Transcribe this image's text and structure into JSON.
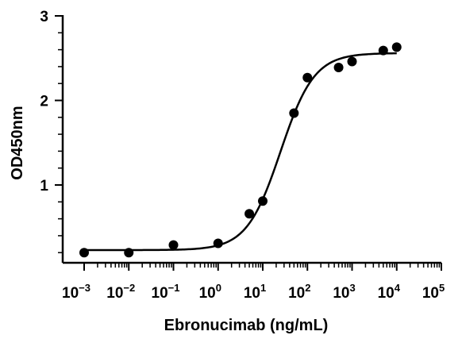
{
  "chart_data": {
    "type": "scatter",
    "xlabel": "Ebronucimab (ng/mL)",
    "ylabel": "OD450nm",
    "xscale": "log",
    "xlim": [
      0.001,
      100000
    ],
    "ylim": [
      0.15,
      3
    ],
    "x_ticks": [
      {
        "base": "10",
        "exp": "-3"
      },
      {
        "base": "10",
        "exp": "-2"
      },
      {
        "base": "10",
        "exp": "-1"
      },
      {
        "base": "10",
        "exp": "0"
      },
      {
        "base": "10",
        "exp": "1"
      },
      {
        "base": "10",
        "exp": "2"
      },
      {
        "base": "10",
        "exp": "3"
      },
      {
        "base": "10",
        "exp": "4"
      },
      {
        "base": "10",
        "exp": "5"
      }
    ],
    "y_ticks": [
      "1",
      "2",
      "3"
    ],
    "grid": false,
    "legend": "none",
    "series": [
      {
        "points": [
          {
            "x": 0.001,
            "y": 0.2
          },
          {
            "x": 0.01,
            "y": 0.2
          },
          {
            "x": 0.1,
            "y": 0.29
          },
          {
            "x": 1,
            "y": 0.31
          },
          {
            "x": 5,
            "y": 0.66
          },
          {
            "x": 10,
            "y": 0.81
          },
          {
            "x": 50,
            "y": 1.85
          },
          {
            "x": 100,
            "y": 2.27
          },
          {
            "x": 500,
            "y": 2.39
          },
          {
            "x": 1000,
            "y": 2.46
          },
          {
            "x": 5000,
            "y": 2.59
          },
          {
            "x": 10000,
            "y": 2.63
          }
        ],
        "fit_curve": {
          "model": "4PL",
          "bottom": 0.23,
          "top": 2.56,
          "ec50": 25,
          "hill": 1.15,
          "x_range": [
            0.001,
            10000
          ]
        }
      }
    ],
    "color": "#000000"
  }
}
